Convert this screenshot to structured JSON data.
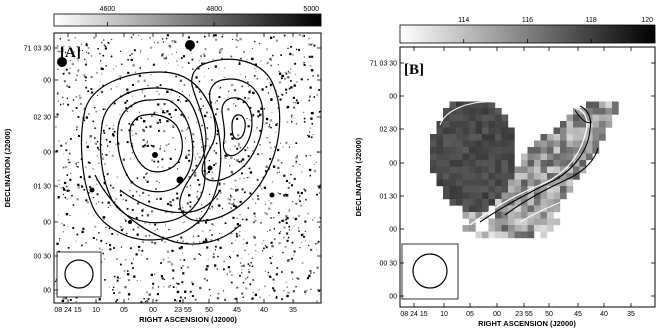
{
  "panels": [
    {
      "id": "A",
      "label": "[A]",
      "colorbar_ticks": [
        "4600",
        "4800",
        "5000"
      ],
      "colorbar_range": [
        4500,
        5000
      ],
      "y_ticks": [
        "71 03 30",
        "00",
        "02 30",
        "00",
        "01 30",
        "00",
        "00 30",
        "00"
      ],
      "x_ticks": [
        "08 24 15",
        "10",
        "05",
        "00",
        "23 55",
        "50",
        "45",
        "40",
        "35"
      ],
      "xlabel": "RIGHT ASCENSION (J2000)",
      "ylabel": "DECLINATION (J2000)"
    },
    {
      "id": "B",
      "label": "[B]",
      "colorbar_ticks": [
        "114",
        "116",
        "118",
        "120"
      ],
      "colorbar_range": [
        112,
        120
      ],
      "y_ticks": [
        "71 03 30",
        "00",
        "02 30",
        "00",
        "01 30",
        "00",
        "00 30",
        "00"
      ],
      "x_ticks": [
        "08 24 15",
        "10",
        "05",
        "00",
        "23 55",
        "50",
        "45",
        "40",
        "35"
      ],
      "xlabel": "RIGHT ASCENSION (J2000)",
      "ylabel": "DECLINATION (J2000)"
    }
  ]
}
